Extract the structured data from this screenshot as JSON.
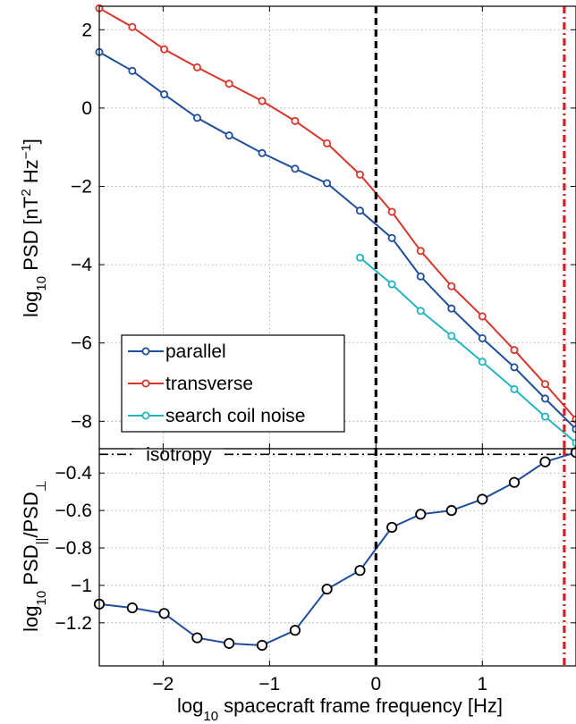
{
  "chart_data": [
    {
      "type": "line",
      "ylabel": {
        "main": "log",
        "sub": "10",
        "rest": " PSD [nT",
        "sup1": "2",
        "mid": " Hz",
        "sup2": "−1",
        "end": "]"
      },
      "xlim": [
        -2.6,
        1.88
      ],
      "ylim": [
        -8.7,
        2.6
      ],
      "yticks": [
        2,
        0,
        -2,
        -4,
        -6,
        -8
      ],
      "ytick_labels": [
        "2",
        "0",
        "−2",
        "−4",
        "−6",
        "−8"
      ],
      "grid": true,
      "legend": {
        "position": "bottom-left",
        "entries": [
          "parallel",
          "transverse",
          "search coil noise"
        ]
      },
      "colors": {
        "parallel": "#1f4e9c",
        "transverse": "#d8362b",
        "noise": "#22b5c0"
      },
      "series": [
        {
          "name": "parallel",
          "x": [
            -2.6,
            -2.29,
            -1.99,
            -1.68,
            -1.38,
            -1.07,
            -0.76,
            -0.46,
            -0.15,
            0.15,
            0.42,
            0.71,
            1.0,
            1.3,
            1.59,
            1.88
          ],
          "y": [
            1.43,
            0.95,
            0.35,
            -0.25,
            -0.7,
            -1.15,
            -1.55,
            -1.92,
            -2.62,
            -3.32,
            -4.3,
            -5.12,
            -5.88,
            -6.62,
            -7.42,
            -8.2
          ]
        },
        {
          "name": "transverse",
          "x": [
            -2.6,
            -2.29,
            -1.99,
            -1.68,
            -1.38,
            -1.07,
            -0.76,
            -0.46,
            -0.15,
            0.15,
            0.42,
            0.71,
            1.0,
            1.3,
            1.59,
            1.88
          ],
          "y": [
            2.55,
            2.07,
            1.5,
            1.04,
            0.62,
            0.18,
            -0.33,
            -0.9,
            -1.7,
            -2.65,
            -3.65,
            -4.55,
            -5.32,
            -6.18,
            -7.05,
            -7.95
          ]
        },
        {
          "name": "search coil noise",
          "x": [
            -0.15,
            0.15,
            0.42,
            0.71,
            1.0,
            1.3,
            1.59,
            1.88
          ],
          "y": [
            -3.82,
            -4.5,
            -5.18,
            -5.82,
            -6.48,
            -7.18,
            -7.88,
            -8.55
          ]
        }
      ],
      "vlines": [
        {
          "x": 0.0,
          "color": "#000000",
          "style": "dashed"
        },
        {
          "x": 1.77,
          "color": "#e0191e",
          "style": "dashdot"
        }
      ]
    },
    {
      "type": "line",
      "xlabel": {
        "main": "log",
        "sub": "10",
        "rest": " spacecraft frame frequency [Hz]"
      },
      "ylabel": {
        "main": "log",
        "sub": "10",
        "rest": " PSD",
        "sub2": "||",
        "slash": "/PSD",
        "sub3": "⊥"
      },
      "xlim": [
        -2.6,
        1.88
      ],
      "ylim": [
        -1.43,
        -0.27
      ],
      "xticks": [
        -2,
        -1,
        0,
        1
      ],
      "xtick_labels": [
        "−2",
        "−1",
        "0",
        "1"
      ],
      "yticks": [
        -0.4,
        -0.6,
        -0.8,
        -1,
        -1.2
      ],
      "ytick_labels": [
        "−0.4",
        "−0.6",
        "−0.8",
        "−1",
        "−1.2"
      ],
      "grid": true,
      "hline": {
        "y": -0.3,
        "label": "isotropy",
        "style": "dashdot"
      },
      "series": [
        {
          "name": "",
          "color": "#1f4e9c",
          "x": [
            -2.6,
            -2.29,
            -1.99,
            -1.68,
            -1.38,
            -1.07,
            -0.76,
            -0.46,
            -0.15,
            0.15,
            0.42,
            0.71,
            1.0,
            1.3,
            1.59,
            1.88
          ],
          "y": [
            -1.1,
            -1.12,
            -1.15,
            -1.28,
            -1.31,
            -1.32,
            -1.24,
            -1.02,
            -0.92,
            -0.69,
            -0.62,
            -0.6,
            -0.54,
            -0.45,
            -0.34,
            -0.29
          ]
        }
      ],
      "vlines": [
        {
          "x": 0.0,
          "color": "#000000",
          "style": "dashed"
        },
        {
          "x": 1.77,
          "color": "#e0191e",
          "style": "dashdot"
        }
      ]
    }
  ]
}
